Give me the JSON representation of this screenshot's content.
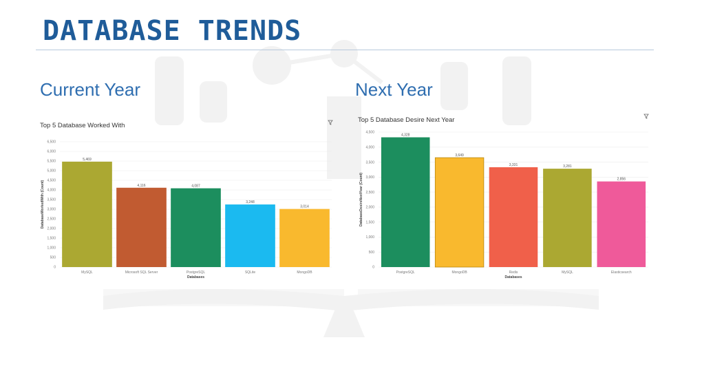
{
  "slide": {
    "title": "DATABASE TRENDS",
    "left_heading": "Current Year",
    "right_heading": "Next Year",
    "accent_color": "#1f5c99",
    "heading_color": "#2f6eb0"
  },
  "chart_data": [
    {
      "type": "bar",
      "title": "Top 5 Database Worked With",
      "xlabel": "Databases",
      "ylabel": "DatabaseWorkedWith (Count)",
      "categories": [
        "MySQL",
        "Microsoft SQL Server",
        "PostgreSQL",
        "SQLite",
        "MongoDB"
      ],
      "values": [
        5469,
        4116,
        4087,
        3248,
        3014
      ],
      "value_labels": [
        "5,469",
        "4,116",
        "4,087",
        "3,248",
        "3,014"
      ],
      "colors": [
        "#aba832",
        "#c15b31",
        "#1c8e5e",
        "#1bbaf0",
        "#f9b92e"
      ],
      "ylim": [
        0,
        6500
      ],
      "yticks": [
        0,
        500,
        1000,
        1500,
        2000,
        2500,
        3000,
        3500,
        4000,
        4500,
        5000,
        5500,
        6000,
        6500
      ],
      "ytick_labels": [
        "0",
        "500",
        "1,000",
        "1,500",
        "2,000",
        "2,500",
        "3,000",
        "3,500",
        "4,000",
        "4,500",
        "5,000",
        "5,500",
        "6,000",
        "6,500"
      ],
      "grid": true,
      "legend": "none"
    },
    {
      "type": "bar",
      "title": "Top 5 Database Desire Next Year",
      "xlabel": "Databases",
      "ylabel": "DatabaseDesireNextYear (Count)",
      "categories": [
        "PostgreSQL",
        "MongoDB",
        "Redis",
        "MySQL",
        "Elasticsearch"
      ],
      "values": [
        4328,
        3649,
        3331,
        3281,
        2856
      ],
      "value_labels": [
        "4,328",
        "3,649",
        "3,331",
        "3,281",
        "2,856"
      ],
      "colors": [
        "#1c8e5e",
        "#f9b92e",
        "#f0604a",
        "#aba832",
        "#ef5a9a"
      ],
      "ylim": [
        0,
        4500
      ],
      "yticks": [
        0,
        500,
        1000,
        1500,
        2000,
        2500,
        3000,
        3500,
        4000,
        4500
      ],
      "ytick_labels": [
        "0",
        "500",
        "1,000",
        "1,500",
        "2,000",
        "2,500",
        "3,000",
        "3,500",
        "4,000",
        "4,500"
      ],
      "grid": true,
      "legend": "none"
    }
  ]
}
